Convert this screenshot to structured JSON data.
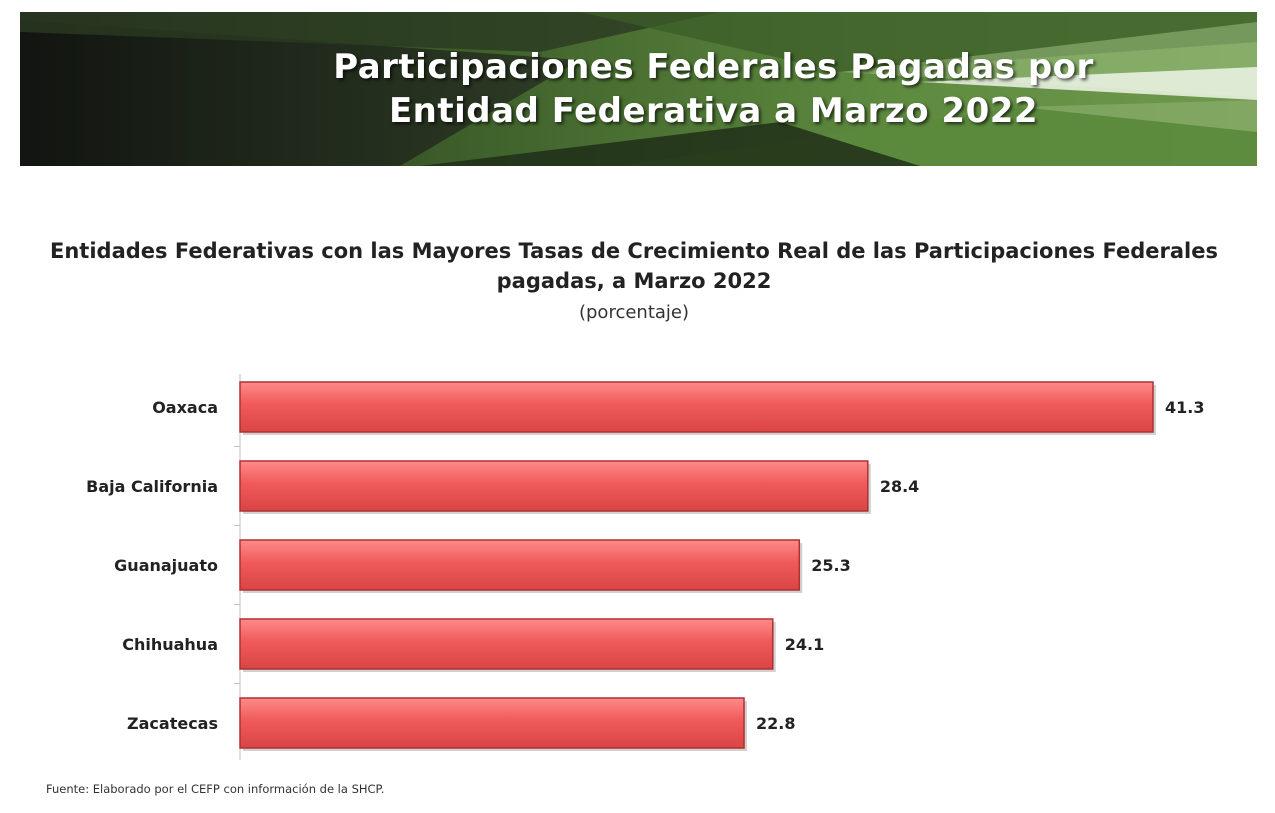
{
  "banner": {
    "title": "Participaciones Federales Pagadas por Entidad Federativa a Marzo 2022"
  },
  "chart_data": {
    "type": "bar",
    "orientation": "horizontal",
    "title": "Entidades Federativas con las Mayores Tasas de Crecimiento Real de las Participaciones Federales pagadas, a Marzo 2022",
    "subtitle": "(porcentaje)",
    "categories": [
      "Oaxaca",
      "Baja California",
      "Guanajuato",
      "Chihuahua",
      "Zacatecas"
    ],
    "values": [
      41.3,
      28.4,
      25.3,
      24.1,
      22.8
    ],
    "data_labels": [
      "41.3",
      "28.4",
      "25.3",
      "24.1",
      "22.8"
    ],
    "xlim": [
      0,
      41.3
    ],
    "xlabel": "",
    "ylabel": "",
    "grid": false,
    "legend": "none",
    "bar_color": "#f05a5a",
    "bar_border_color": "#b03030"
  },
  "footer": {
    "source": "Fuente: Elaborado por el CEFP con información de la SHCP."
  },
  "colors": {
    "banner_dark": "#1a1e18",
    "banner_green": "#4c7a35",
    "banner_light_green": "#7fa85f"
  }
}
